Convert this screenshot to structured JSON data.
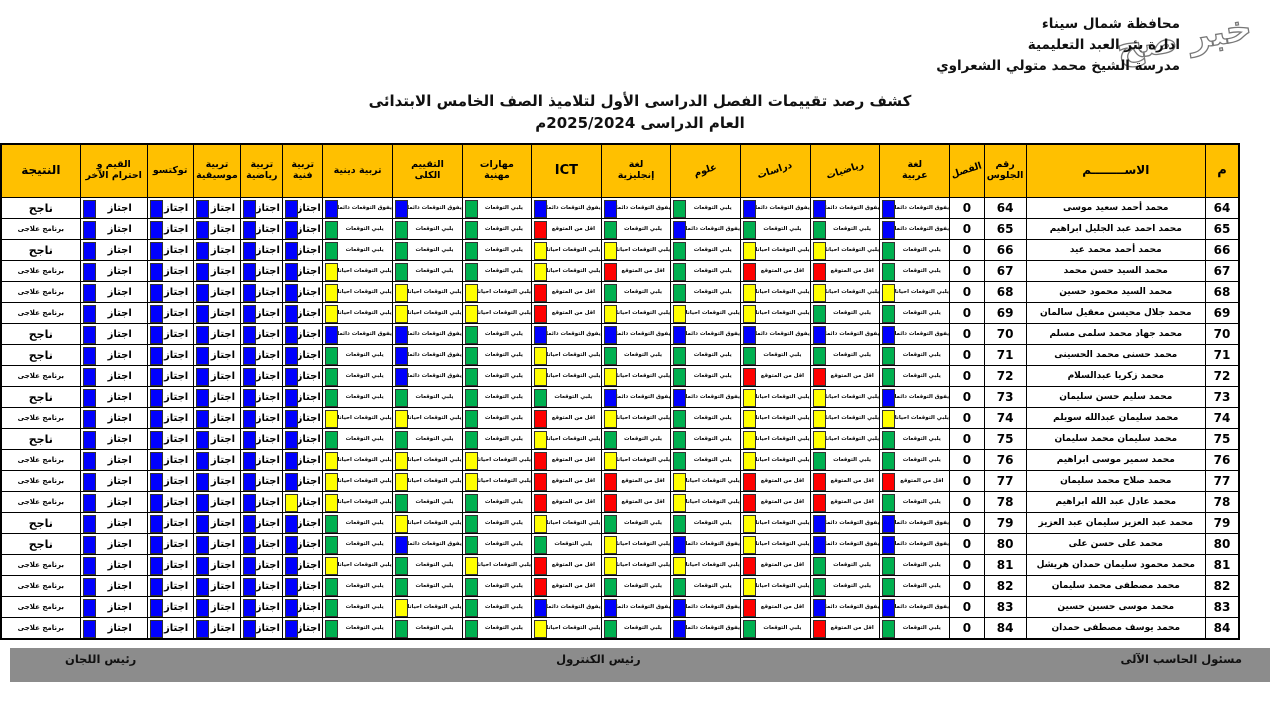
{
  "watermark": "خبر صح",
  "letterhead": {
    "line1": "محافظة شمال سيناء",
    "line2": "ادارة بئر العبد التعليمية",
    "line3": "مدرسة الشيخ محمد متولي الشعراوي"
  },
  "title": {
    "line1": "كشف رصد تقييمات الفصل الدراسى الأول لتلاميذ الصف الخامس الابتدائى",
    "line2": "العام الدراسى    2025/2024م"
  },
  "legend": {
    "B": {
      "label": "يفوق التوقعات دائما",
      "color": "#0000FE"
    },
    "G": {
      "label": "يلبي التوقعات",
      "color": "#00B050"
    },
    "Y": {
      "label": "يلبي التوقعات أحيانا",
      "color": "#FFFF00"
    },
    "R": {
      "label": "أقل من المتوقع",
      "color": "#FF0000"
    },
    "pass_label": "اجتاز",
    "result_pass": "ناجح",
    "result_remedial": "برنامج علاجى"
  },
  "columns": [
    {
      "key": "serial",
      "label": "م",
      "cls": "big",
      "width": 34
    },
    {
      "key": "name",
      "label": "الاســــــــم",
      "cls": "name-h",
      "width": 180
    },
    {
      "key": "seat",
      "label": "رقم\nالجلوس",
      "cls": "",
      "width": 42
    },
    {
      "key": "class",
      "label": "الفصل",
      "cls": "tilt",
      "width": 26
    },
    {
      "key": "arabic",
      "label": "لغة\nعربية",
      "cls": "",
      "width": 66
    },
    {
      "key": "math",
      "label": "رياضيات",
      "cls": "tilt",
      "width": 58
    },
    {
      "key": "studies",
      "label": "دراسات",
      "cls": "tilt",
      "width": 56
    },
    {
      "key": "science",
      "label": "علوم",
      "cls": "tilt",
      "width": 60
    },
    {
      "key": "english",
      "label": "لغة\nإنجليزية",
      "cls": "",
      "width": 64
    },
    {
      "key": "ict",
      "label": "ICT",
      "cls": "big",
      "width": 62
    },
    {
      "key": "vocational",
      "label": "مهارات\nمهنية",
      "cls": "",
      "width": 64
    },
    {
      "key": "overall",
      "label": "التقييم\nالكلى",
      "cls": "",
      "width": 66
    },
    {
      "key": "religion",
      "label": "تربية دينية",
      "cls": "",
      "width": 70
    },
    {
      "key": "art",
      "label": "تربية\nفنية",
      "cls": "",
      "width": 40
    },
    {
      "key": "pe",
      "label": "تربية\nرياضية",
      "cls": "",
      "width": 42
    },
    {
      "key": "music",
      "label": "تربية\nموسيقية",
      "cls": "",
      "width": 48
    },
    {
      "key": "taekwondo",
      "label": "توكتسو",
      "cls": "",
      "width": 46
    },
    {
      "key": "values",
      "label": "القيم و\nاحترام الآخر",
      "cls": "",
      "width": 68
    },
    {
      "key": "result",
      "label": "النتيجة",
      "cls": "name-h",
      "width": 80
    }
  ],
  "eval_order": [
    "arabic",
    "math",
    "studies",
    "science",
    "english",
    "ict",
    "vocational",
    "overall",
    "religion"
  ],
  "pass_order": [
    "art",
    "pe",
    "music",
    "taekwondo",
    "values"
  ],
  "rows": [
    {
      "serial": "64",
      "name": "محمد أحمد سعيد موسى",
      "seat": "64",
      "class": "0",
      "evals": [
        "B",
        "B",
        "B",
        "G",
        "B",
        "B",
        "G",
        "B",
        "B"
      ],
      "pass": [
        "B",
        "B",
        "B",
        "B",
        "B"
      ],
      "result": "ناجح"
    },
    {
      "serial": "65",
      "name": "محمد احمد عبد الجليل ابراهيم",
      "seat": "65",
      "class": "0",
      "evals": [
        "B",
        "G",
        "G",
        "B",
        "G",
        "R",
        "G",
        "G",
        "G"
      ],
      "pass": [
        "B",
        "B",
        "B",
        "B",
        "B"
      ],
      "result": "برنامج علاجى"
    },
    {
      "serial": "66",
      "name": "محمد أحمد محمد عيد",
      "seat": "66",
      "class": "0",
      "evals": [
        "G",
        "Y",
        "Y",
        "G",
        "Y",
        "Y",
        "G",
        "G",
        "G"
      ],
      "pass": [
        "B",
        "B",
        "B",
        "B",
        "B"
      ],
      "result": "ناجح"
    },
    {
      "serial": "67",
      "name": "محمد السيد حسن محمد",
      "seat": "67",
      "class": "0",
      "evals": [
        "G",
        "R",
        "R",
        "G",
        "R",
        "Y",
        "G",
        "G",
        "Y"
      ],
      "pass": [
        "B",
        "B",
        "B",
        "B",
        "B"
      ],
      "result": "برنامج علاجى"
    },
    {
      "serial": "68",
      "name": "محمد السيد محمود حسين",
      "seat": "68",
      "class": "0",
      "evals": [
        "Y",
        "Y",
        "Y",
        "G",
        "G",
        "R",
        "Y",
        "Y",
        "Y"
      ],
      "pass": [
        "B",
        "B",
        "B",
        "B",
        "B"
      ],
      "result": "برنامج علاجى"
    },
    {
      "serial": "69",
      "name": "محمد جلال محيسن معقيل سالمان",
      "seat": "69",
      "class": "0",
      "evals": [
        "G",
        "G",
        "Y",
        "Y",
        "Y",
        "R",
        "Y",
        "Y",
        "Y"
      ],
      "pass": [
        "B",
        "B",
        "B",
        "B",
        "B"
      ],
      "result": "برنامج علاجى"
    },
    {
      "serial": "70",
      "name": "محمد جهاد محمد سلمى مسلم",
      "seat": "70",
      "class": "0",
      "evals": [
        "B",
        "B",
        "B",
        "B",
        "B",
        "B",
        "G",
        "B",
        "B"
      ],
      "pass": [
        "B",
        "B",
        "B",
        "B",
        "B"
      ],
      "result": "ناجح"
    },
    {
      "serial": "71",
      "name": "محمد حسنى محمد الحسينى",
      "seat": "71",
      "class": "0",
      "evals": [
        "G",
        "G",
        "G",
        "G",
        "G",
        "Y",
        "G",
        "B",
        "G"
      ],
      "pass": [
        "B",
        "B",
        "B",
        "B",
        "B"
      ],
      "result": "ناجح"
    },
    {
      "serial": "72",
      "name": "محمد زكريا عبدالسلام",
      "seat": "72",
      "class": "0",
      "evals": [
        "G",
        "R",
        "R",
        "G",
        "Y",
        "Y",
        "G",
        "B",
        "G"
      ],
      "pass": [
        "B",
        "B",
        "B",
        "B",
        "B"
      ],
      "result": "برنامج علاجى"
    },
    {
      "serial": "73",
      "name": "محمد سليم حسن سليمان",
      "seat": "73",
      "class": "0",
      "evals": [
        "B",
        "Y",
        "Y",
        "B",
        "B",
        "G",
        "G",
        "G",
        "G"
      ],
      "pass": [
        "B",
        "B",
        "B",
        "B",
        "B"
      ],
      "result": "ناجح"
    },
    {
      "serial": "74",
      "name": "محمد سليمان عبدالله سويلم",
      "seat": "74",
      "class": "0",
      "evals": [
        "Y",
        "Y",
        "Y",
        "G",
        "Y",
        "R",
        "G",
        "Y",
        "Y"
      ],
      "pass": [
        "B",
        "B",
        "B",
        "B",
        "B"
      ],
      "result": "برنامج علاجى"
    },
    {
      "serial": "75",
      "name": "محمد سليمان محمد سليمان",
      "seat": "75",
      "class": "0",
      "evals": [
        "G",
        "Y",
        "Y",
        "G",
        "G",
        "Y",
        "G",
        "G",
        "G"
      ],
      "pass": [
        "B",
        "B",
        "B",
        "B",
        "B"
      ],
      "result": "ناجح"
    },
    {
      "serial": "76",
      "name": "محمد سمير موسى ابراهيم",
      "seat": "76",
      "class": "0",
      "evals": [
        "G",
        "G",
        "Y",
        "G",
        "Y",
        "R",
        "Y",
        "Y",
        "Y"
      ],
      "pass": [
        "B",
        "B",
        "B",
        "B",
        "B"
      ],
      "result": "برنامج علاجى"
    },
    {
      "serial": "77",
      "name": "محمد صلاح محمد سليمان",
      "seat": "77",
      "class": "0",
      "evals": [
        "R",
        "R",
        "R",
        "Y",
        "R",
        "R",
        "Y",
        "Y",
        "Y"
      ],
      "pass": [
        "B",
        "B",
        "B",
        "B",
        "B"
      ],
      "result": "برنامج علاجى"
    },
    {
      "serial": "78",
      "name": "محمد عادل عبد الله ابراهيم",
      "seat": "78",
      "class": "0",
      "evals": [
        "G",
        "R",
        "R",
        "Y",
        "R",
        "R",
        "G",
        "G",
        "Y"
      ],
      "pass": [
        "Y",
        "B",
        "B",
        "B",
        "B"
      ],
      "result": "برنامج علاجى"
    },
    {
      "serial": "79",
      "name": "محمد عبد العزيز سليمان عبد العزيز",
      "seat": "79",
      "class": "0",
      "evals": [
        "B",
        "B",
        "Y",
        "G",
        "G",
        "Y",
        "G",
        "Y",
        "G"
      ],
      "pass": [
        "B",
        "B",
        "B",
        "B",
        "B"
      ],
      "result": "ناجح"
    },
    {
      "serial": "80",
      "name": "محمد على حسن على",
      "seat": "80",
      "class": "0",
      "evals": [
        "B",
        "B",
        "Y",
        "B",
        "Y",
        "G",
        "G",
        "B",
        "G"
      ],
      "pass": [
        "B",
        "B",
        "B",
        "B",
        "B"
      ],
      "result": "ناجح"
    },
    {
      "serial": "81",
      "name": "محمد محمود سليمان حمدان هريشل",
      "seat": "81",
      "class": "0",
      "evals": [
        "G",
        "G",
        "R",
        "Y",
        "Y",
        "R",
        "Y",
        "G",
        "Y"
      ],
      "pass": [
        "B",
        "B",
        "B",
        "B",
        "B"
      ],
      "result": "برنامج علاجى"
    },
    {
      "serial": "82",
      "name": "محمد مصطفى محمد سليمان",
      "seat": "82",
      "class": "0",
      "evals": [
        "G",
        "G",
        "Y",
        "G",
        "G",
        "R",
        "G",
        "G",
        "G"
      ],
      "pass": [
        "B",
        "B",
        "B",
        "B",
        "B"
      ],
      "result": "برنامج علاجى"
    },
    {
      "serial": "83",
      "name": "محمد موسى حسين حسين",
      "seat": "83",
      "class": "0",
      "evals": [
        "B",
        "B",
        "R",
        "B",
        "B",
        "B",
        "G",
        "Y",
        "G"
      ],
      "pass": [
        "B",
        "B",
        "B",
        "B",
        "B"
      ],
      "result": "برنامج علاجى"
    },
    {
      "serial": "84",
      "name": "محمد يوسف مصطفى حمدان",
      "seat": "84",
      "class": "0",
      "evals": [
        "G",
        "R",
        "G",
        "B",
        "G",
        "Y",
        "G",
        "G",
        "G"
      ],
      "pass": [
        "B",
        "B",
        "B",
        "B",
        "B"
      ],
      "result": "برنامج علاجى"
    }
  ],
  "footer": {
    "right": "مسئول الحاسب الآلى",
    "center": "رئيس الكنترول",
    "left": "رئيس اللجان"
  }
}
